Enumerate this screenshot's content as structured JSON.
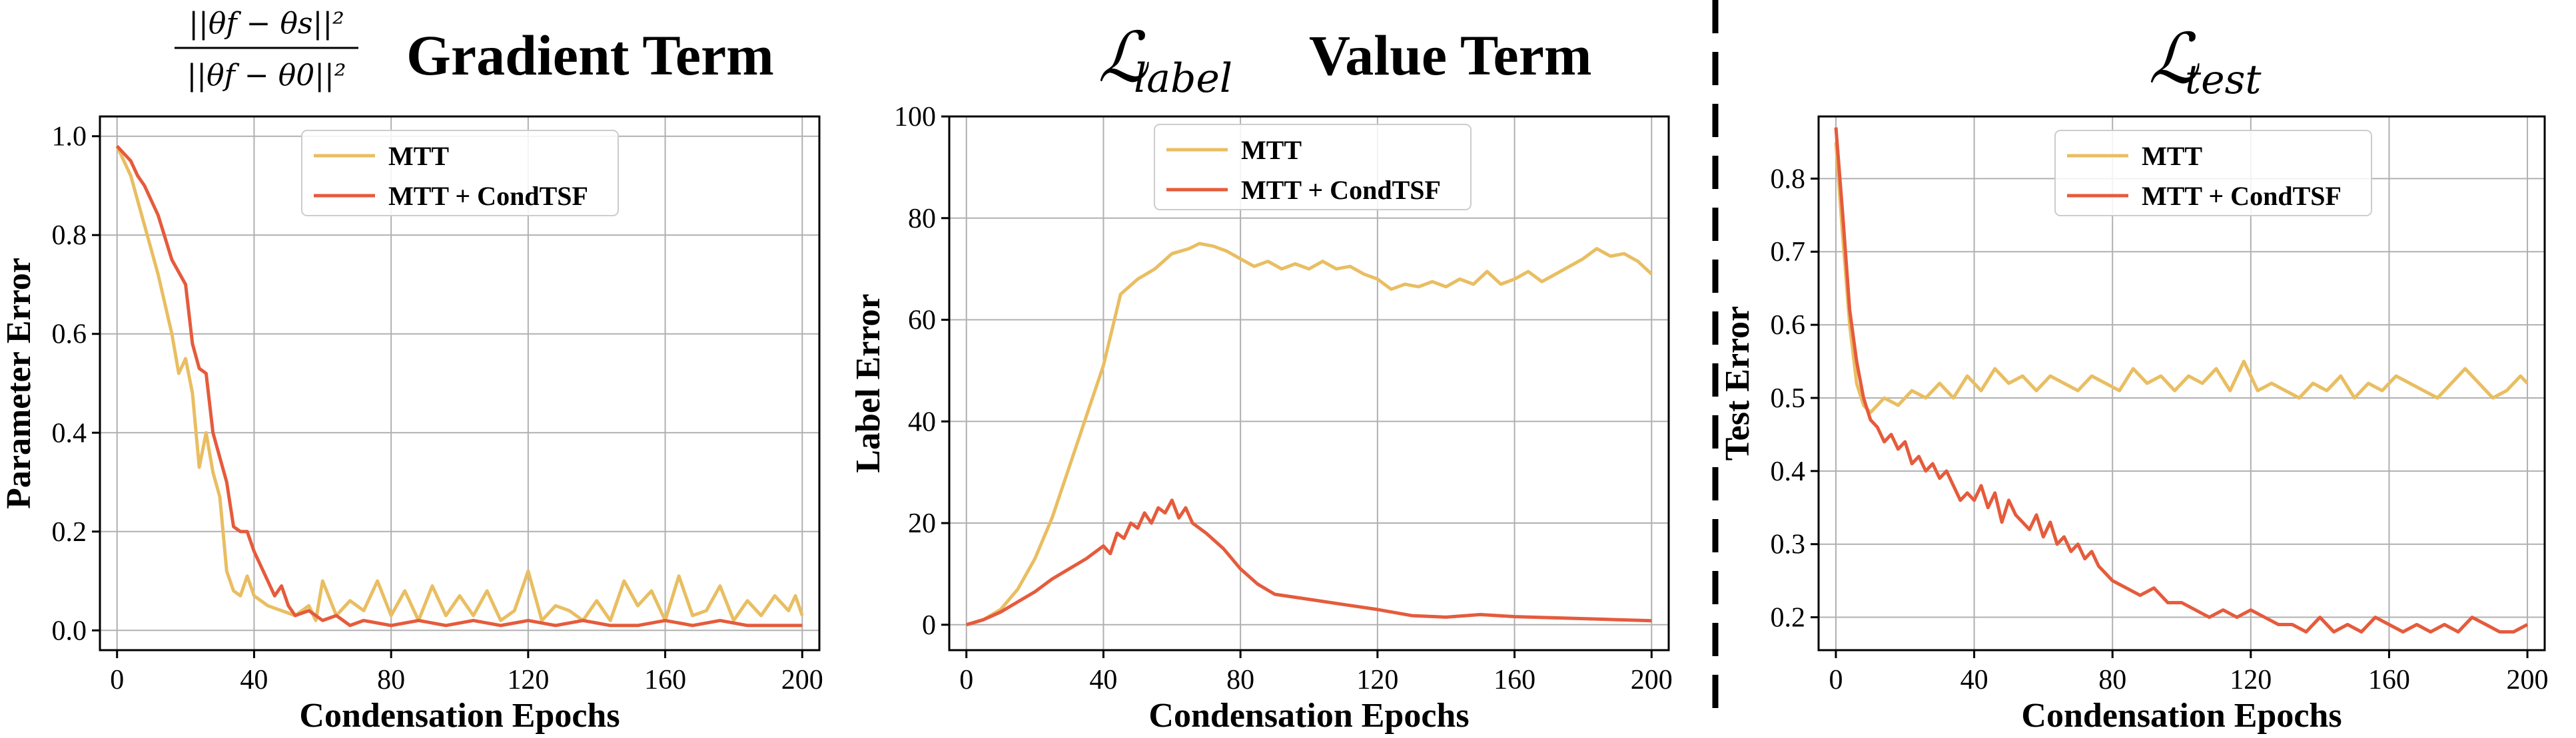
{
  "colors": {
    "mtt": "#E9BE62",
    "condtsf": "#E55B3C",
    "grid": "#b0b0b0",
    "divider": "#000000"
  },
  "legend": {
    "mtt": "MTT",
    "condtsf": "MTT + CondTSF"
  },
  "chart_data": [
    {
      "type": "line",
      "title": "Gradient Term",
      "title_formula": {
        "numerator": "||θf − θs||²",
        "denominator": "||θf − θ0||²"
      },
      "xlabel": "Condensation Epochs",
      "ylabel": "Parameter Error",
      "xlim": [
        -5,
        205
      ],
      "ylim": [
        -0.04,
        1.04
      ],
      "xticks": [
        0,
        40,
        80,
        120,
        160,
        200
      ],
      "yticks": [
        0.0,
        0.2,
        0.4,
        0.6,
        0.8,
        1.0
      ],
      "ytick_labels": [
        "0.0",
        "0.2",
        "0.4",
        "0.6",
        "0.8",
        "1.0"
      ],
      "series": [
        {
          "name": "MTT",
          "x": [
            0,
            4,
            8,
            12,
            16,
            18,
            20,
            22,
            24,
            26,
            28,
            30,
            32,
            34,
            36,
            38,
            40,
            44,
            48,
            52,
            56,
            58,
            60,
            64,
            68,
            72,
            76,
            80,
            84,
            88,
            92,
            96,
            100,
            104,
            108,
            112,
            116,
            120,
            124,
            128,
            132,
            136,
            140,
            144,
            148,
            152,
            156,
            160,
            164,
            168,
            172,
            176,
            180,
            184,
            188,
            192,
            196,
            198,
            200
          ],
          "values": [
            0.98,
            0.92,
            0.82,
            0.72,
            0.6,
            0.52,
            0.55,
            0.48,
            0.33,
            0.4,
            0.32,
            0.27,
            0.12,
            0.08,
            0.07,
            0.11,
            0.07,
            0.05,
            0.04,
            0.03,
            0.05,
            0.02,
            0.1,
            0.03,
            0.06,
            0.04,
            0.1,
            0.03,
            0.08,
            0.02,
            0.09,
            0.03,
            0.07,
            0.03,
            0.08,
            0.02,
            0.04,
            0.12,
            0.02,
            0.05,
            0.04,
            0.02,
            0.06,
            0.02,
            0.1,
            0.05,
            0.08,
            0.02,
            0.11,
            0.03,
            0.04,
            0.09,
            0.02,
            0.06,
            0.03,
            0.07,
            0.04,
            0.07,
            0.03
          ]
        },
        {
          "name": "MTT + CondTSF",
          "x": [
            0,
            4,
            6,
            8,
            12,
            16,
            20,
            22,
            24,
            26,
            28,
            30,
            32,
            34,
            36,
            38,
            40,
            44,
            46,
            48,
            50,
            52,
            56,
            60,
            64,
            68,
            72,
            80,
            88,
            96,
            104,
            112,
            120,
            128,
            136,
            144,
            152,
            160,
            168,
            176,
            184,
            192,
            200
          ],
          "values": [
            0.98,
            0.95,
            0.92,
            0.9,
            0.84,
            0.75,
            0.7,
            0.58,
            0.53,
            0.52,
            0.4,
            0.35,
            0.3,
            0.21,
            0.2,
            0.2,
            0.16,
            0.1,
            0.07,
            0.09,
            0.05,
            0.03,
            0.04,
            0.02,
            0.03,
            0.01,
            0.02,
            0.01,
            0.02,
            0.01,
            0.02,
            0.01,
            0.02,
            0.01,
            0.02,
            0.01,
            0.01,
            0.02,
            0.01,
            0.02,
            0.01,
            0.01,
            0.01
          ]
        }
      ]
    },
    {
      "type": "line",
      "title": "Value Term",
      "title_math": {
        "base": "ℒ",
        "sub": "label"
      },
      "xlabel": "Condensation Epochs",
      "ylabel": "Label Error",
      "xlim": [
        -5,
        205
      ],
      "ylim": [
        -5,
        100
      ],
      "xticks": [
        0,
        40,
        80,
        120,
        160,
        200
      ],
      "yticks": [
        0,
        20,
        40,
        60,
        80,
        100
      ],
      "ytick_labels": [
        "0",
        "20",
        "40",
        "60",
        "80",
        "100"
      ],
      "series": [
        {
          "name": "MTT",
          "x": [
            0,
            5,
            10,
            15,
            20,
            25,
            30,
            35,
            40,
            45,
            50,
            55,
            60,
            65,
            68,
            72,
            76,
            80,
            84,
            88,
            92,
            96,
            100,
            104,
            108,
            112,
            116,
            120,
            124,
            128,
            132,
            136,
            140,
            144,
            148,
            152,
            156,
            160,
            164,
            168,
            172,
            176,
            180,
            184,
            188,
            192,
            196,
            200
          ],
          "values": [
            0,
            1,
            3,
            7,
            13,
            21,
            31,
            41,
            51,
            65,
            68,
            70,
            73,
            74,
            75,
            74.5,
            73.5,
            72,
            70.5,
            71.5,
            70,
            71,
            70,
            71.5,
            70,
            70.5,
            69,
            68,
            66,
            67,
            66.5,
            67.5,
            66.5,
            68,
            67,
            69.5,
            67,
            68,
            69.5,
            67.5,
            69,
            70.5,
            72,
            74,
            72.5,
            73,
            71.5,
            69
          ]
        },
        {
          "name": "MTT + CondTSF",
          "x": [
            0,
            5,
            10,
            15,
            20,
            25,
            30,
            35,
            40,
            42,
            44,
            46,
            48,
            50,
            52,
            54,
            56,
            58,
            60,
            62,
            64,
            66,
            70,
            75,
            80,
            85,
            90,
            100,
            110,
            120,
            130,
            140,
            150,
            160,
            170,
            180,
            190,
            200
          ],
          "values": [
            0,
            1,
            2.5,
            4.5,
            6.5,
            9,
            11,
            13,
            15.5,
            14,
            18,
            17,
            20,
            19,
            22,
            20,
            23,
            22,
            24.5,
            21,
            23,
            20,
            18,
            15,
            11,
            8,
            6,
            5,
            4,
            3,
            1.8,
            1.5,
            2,
            1.6,
            1.4,
            1.2,
            1.0,
            0.8
          ]
        }
      ]
    },
    {
      "type": "line",
      "title": "",
      "title_math": {
        "base": "ℒ",
        "sub": "test"
      },
      "xlabel": "Condensation Epochs",
      "ylabel": "Test Error",
      "xlim": [
        -5,
        205
      ],
      "ylim": [
        0.155,
        0.885
      ],
      "xticks": [
        0,
        40,
        80,
        120,
        160,
        200
      ],
      "yticks": [
        0.2,
        0.3,
        0.4,
        0.5,
        0.6,
        0.7,
        0.8
      ],
      "ytick_labels": [
        "0.2",
        "0.3",
        "0.4",
        "0.5",
        "0.6",
        "0.7",
        "0.8"
      ],
      "series": [
        {
          "name": "MTT",
          "x": [
            0,
            2,
            4,
            6,
            8,
            10,
            14,
            18,
            22,
            26,
            30,
            34,
            38,
            42,
            46,
            50,
            54,
            58,
            62,
            66,
            70,
            74,
            78,
            82,
            86,
            90,
            94,
            98,
            102,
            106,
            110,
            114,
            118,
            122,
            126,
            130,
            134,
            138,
            142,
            146,
            150,
            154,
            158,
            162,
            166,
            170,
            174,
            178,
            182,
            186,
            190,
            194,
            198,
            200
          ],
          "values": [
            0.85,
            0.72,
            0.6,
            0.52,
            0.49,
            0.48,
            0.5,
            0.49,
            0.51,
            0.5,
            0.52,
            0.5,
            0.53,
            0.51,
            0.54,
            0.52,
            0.53,
            0.51,
            0.53,
            0.52,
            0.51,
            0.53,
            0.52,
            0.51,
            0.54,
            0.52,
            0.53,
            0.51,
            0.53,
            0.52,
            0.54,
            0.51,
            0.55,
            0.51,
            0.52,
            0.51,
            0.5,
            0.52,
            0.51,
            0.53,
            0.5,
            0.52,
            0.51,
            0.53,
            0.52,
            0.51,
            0.5,
            0.52,
            0.54,
            0.52,
            0.5,
            0.51,
            0.53,
            0.52
          ]
        },
        {
          "name": "MTT + CondTSF",
          "x": [
            0,
            2,
            4,
            6,
            8,
            10,
            12,
            14,
            16,
            18,
            20,
            22,
            24,
            26,
            28,
            30,
            32,
            34,
            36,
            38,
            40,
            42,
            44,
            46,
            48,
            50,
            52,
            54,
            56,
            58,
            60,
            62,
            64,
            66,
            68,
            70,
            72,
            74,
            76,
            78,
            80,
            84,
            88,
            92,
            96,
            100,
            104,
            108,
            112,
            116,
            120,
            124,
            128,
            132,
            136,
            140,
            144,
            148,
            152,
            156,
            160,
            164,
            168,
            172,
            176,
            180,
            184,
            188,
            192,
            196,
            200
          ],
          "values": [
            0.87,
            0.75,
            0.62,
            0.55,
            0.5,
            0.47,
            0.46,
            0.44,
            0.45,
            0.43,
            0.44,
            0.41,
            0.42,
            0.4,
            0.41,
            0.39,
            0.4,
            0.38,
            0.36,
            0.37,
            0.36,
            0.38,
            0.35,
            0.37,
            0.33,
            0.36,
            0.34,
            0.33,
            0.32,
            0.34,
            0.31,
            0.33,
            0.3,
            0.31,
            0.29,
            0.3,
            0.28,
            0.29,
            0.27,
            0.26,
            0.25,
            0.24,
            0.23,
            0.24,
            0.22,
            0.22,
            0.21,
            0.2,
            0.21,
            0.2,
            0.21,
            0.2,
            0.19,
            0.19,
            0.18,
            0.2,
            0.18,
            0.19,
            0.18,
            0.2,
            0.19,
            0.18,
            0.19,
            0.18,
            0.19,
            0.18,
            0.2,
            0.19,
            0.18,
            0.18,
            0.19
          ]
        }
      ]
    }
  ]
}
